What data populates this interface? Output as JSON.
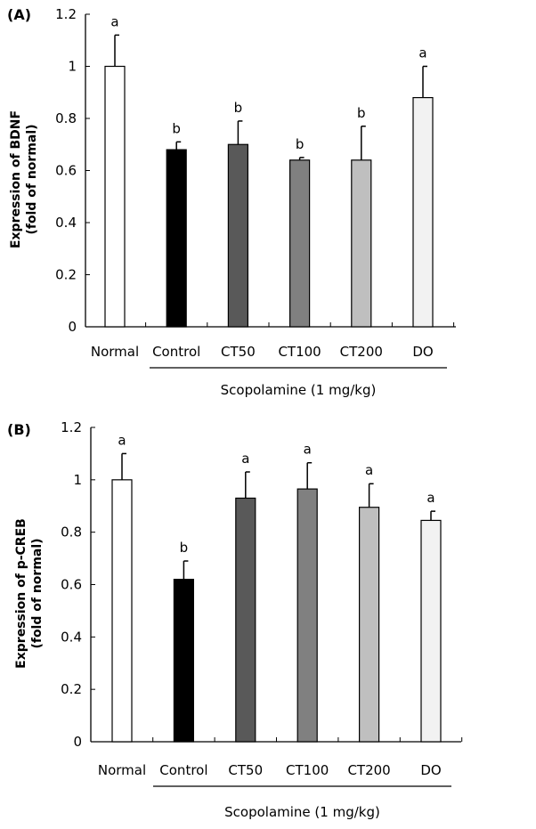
{
  "chart_data": [
    {
      "type": "bar",
      "panel_label": "(A)",
      "ylabel_line1": "Expression of BDNF",
      "ylabel_line2": "(fold of normal)",
      "xlabel": "Scopolamine (1 mg/kg)",
      "categories": [
        "Normal",
        "Control",
        "CT50",
        "CT100",
        "CT200",
        "DO"
      ],
      "values": [
        1.0,
        0.68,
        0.7,
        0.64,
        0.64,
        0.88
      ],
      "errors": [
        0.12,
        0.03,
        0.09,
        0.01,
        0.13,
        0.12
      ],
      "significance": [
        "a",
        "b",
        "b",
        "b",
        "b",
        "a"
      ],
      "ylim": [
        0,
        1.2
      ],
      "yticks": [
        "0",
        "0.2",
        "0.4",
        "0.6",
        "0.8",
        "1",
        "1.2"
      ],
      "bar_colors": [
        "#ffffff",
        "#000000",
        "#595959",
        "#808080",
        "#bfbfbf",
        "#f2f2f2"
      ],
      "grid": false
    },
    {
      "type": "bar",
      "panel_label": "(B)",
      "ylabel_line1": "Expression of p-CREB",
      "ylabel_line2": "(fold of normal)",
      "xlabel": "Scopolamine (1 mg/kg)",
      "categories": [
        "Normal",
        "Control",
        "CT50",
        "CT100",
        "CT200",
        "DO"
      ],
      "values": [
        1.0,
        0.62,
        0.93,
        0.965,
        0.895,
        0.845
      ],
      "errors": [
        0.1,
        0.07,
        0.1,
        0.1,
        0.09,
        0.035
      ],
      "significance": [
        "a",
        "b",
        "a",
        "a",
        "a",
        "a"
      ],
      "ylim": [
        0,
        1.2
      ],
      "yticks": [
        "0",
        "0.2",
        "0.4",
        "0.6",
        "0.8",
        "1",
        "1.2"
      ],
      "bar_colors": [
        "#ffffff",
        "#000000",
        "#595959",
        "#808080",
        "#bfbfbf",
        "#f2f2f2"
      ],
      "grid": false
    }
  ]
}
